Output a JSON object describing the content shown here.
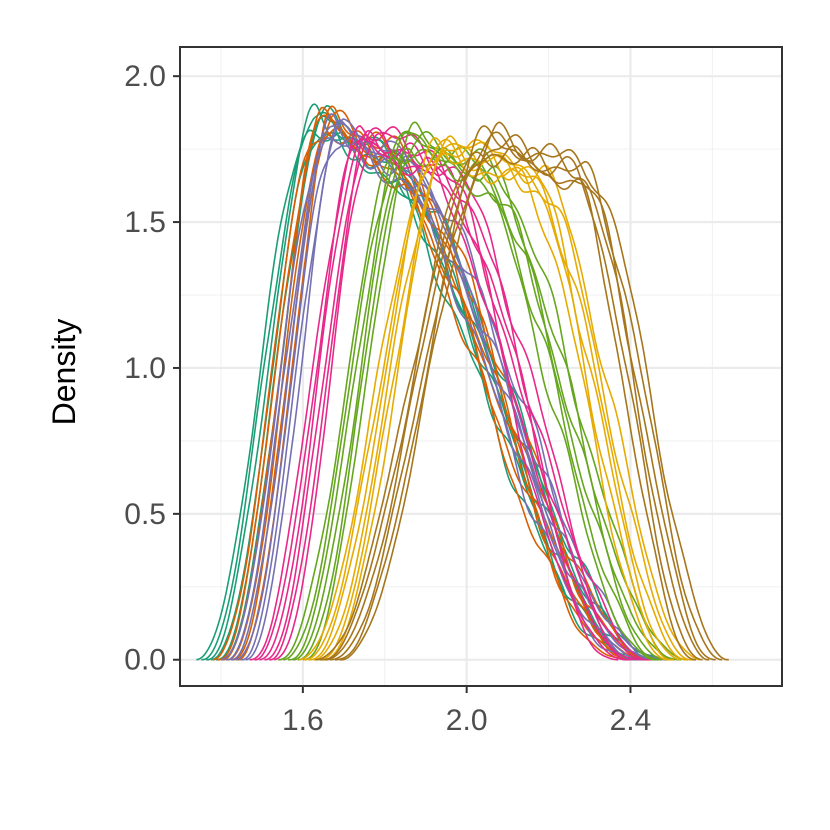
{
  "chart_data": {
    "type": "line",
    "title": "",
    "xlabel": "",
    "ylabel": "Density",
    "xlim": [
      1.3,
      2.77
    ],
    "ylim": [
      -0.09,
      2.1
    ],
    "x_ticks": [
      1.6,
      2.0,
      2.4
    ],
    "x_tick_labels": [
      "1.6",
      "2.0",
      "2.4"
    ],
    "y_ticks": [
      0.0,
      0.5,
      1.0,
      1.5,
      2.0
    ],
    "y_tick_labels": [
      "0.0",
      "0.5",
      "1.0",
      "1.5",
      "2.0"
    ],
    "grid": true,
    "legend": "none",
    "curves_per_group": 6,
    "groups": [
      {
        "color": "#1b9e77",
        "start": 1.37,
        "rise_end": 1.64,
        "peak_end": 1.75,
        "end": 2.45,
        "peak": 1.85
      },
      {
        "color": "#d95f02",
        "start": 1.41,
        "rise_end": 1.66,
        "peak_end": 1.77,
        "end": 2.43,
        "peak": 1.85
      },
      {
        "color": "#7570b3",
        "start": 1.43,
        "rise_end": 1.68,
        "peak_end": 1.8,
        "end": 2.45,
        "peak": 1.82
      },
      {
        "color": "#e7298a",
        "start": 1.5,
        "rise_end": 1.76,
        "peak_end": 1.91,
        "end": 2.41,
        "peak": 1.8
      },
      {
        "color": "#66a61e",
        "start": 1.57,
        "rise_end": 1.86,
        "peak_end": 2.02,
        "end": 2.5,
        "peak": 1.78
      },
      {
        "color": "#e6ab02",
        "start": 1.62,
        "rise_end": 1.95,
        "peak_end": 2.15,
        "end": 2.53,
        "peak": 1.76
      },
      {
        "color": "#a6761d",
        "start": 1.66,
        "rise_end": 2.06,
        "peak_end": 2.27,
        "end": 2.6,
        "peak": 1.77
      }
    ]
  }
}
